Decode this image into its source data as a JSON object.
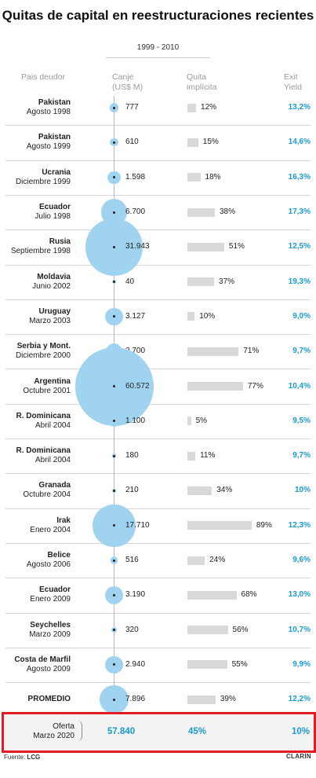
{
  "title": "Quitas de capital en reestructuraciones recientes",
  "subtitle": "1999 - 2010",
  "headers": {
    "country": "Pais deudor",
    "canje": "Canje (US$ M)",
    "quita": "Quita implícita",
    "exit": "Exit Yield"
  },
  "colors": {
    "bubble": "#9fd3f0",
    "bar": "#d9d9d9",
    "accent": "#1a9bd6",
    "highlight": "#e31b23"
  },
  "chart_data": {
    "type": "table",
    "columns": [
      "Pais deudor",
      "Canje (US$ M)",
      "Quita implícita",
      "Exit Yield"
    ],
    "rows": [
      {
        "name": "Pakistan",
        "date": "Agosto 1998",
        "canje": 777,
        "canje_label": "777",
        "quita": 12,
        "quita_label": "12%",
        "exit_label": "13,2%"
      },
      {
        "name": "Pakistan",
        "date": "Agosto 1999",
        "canje": 610,
        "canje_label": "610",
        "quita": 15,
        "quita_label": "15%",
        "exit_label": "14,6%"
      },
      {
        "name": "Ucrania",
        "date": "Diciembre 1999",
        "canje": 1598,
        "canje_label": "1.598",
        "quita": 18,
        "quita_label": "18%",
        "exit_label": "16,3%"
      },
      {
        "name": "Ecuador",
        "date": "Julio 1998",
        "canje": 6700,
        "canje_label": "6.700",
        "quita": 38,
        "quita_label": "38%",
        "exit_label": "17,3%"
      },
      {
        "name": "Rusia",
        "date": "Septiembre 1998",
        "canje": 31943,
        "canje_label": "31.943",
        "quita": 51,
        "quita_label": "51%",
        "exit_label": "12,5%"
      },
      {
        "name": "Moldavia",
        "date": "Junio 2002",
        "canje": 40,
        "canje_label": "40",
        "quita": 37,
        "quita_label": "37%",
        "exit_label": "19,3%"
      },
      {
        "name": "Uruguay",
        "date": "Marzo 2003",
        "canje": 3127,
        "canje_label": "3.127",
        "quita": 10,
        "quita_label": "10%",
        "exit_label": "9,0%"
      },
      {
        "name": "Serbia y Mont.",
        "date": "Diciembre 2000",
        "canje": 2700,
        "canje_label": "2.700",
        "quita": 71,
        "quita_label": "71%",
        "exit_label": "9,7%"
      },
      {
        "name": "Argentina",
        "date": "Octubre 2001",
        "canje": 60572,
        "canje_label": "60.572",
        "quita": 77,
        "quita_label": "77%",
        "exit_label": "10,4%"
      },
      {
        "name": "R. Dominicana",
        "date": "Abril 2004",
        "canje": 1100,
        "canje_label": "1.100",
        "quita": 5,
        "quita_label": "5%",
        "exit_label": "9,5%"
      },
      {
        "name": "R. Dominicana",
        "date": "Abril 2004",
        "canje": 180,
        "canje_label": "180",
        "quita": 11,
        "quita_label": "11%",
        "exit_label": "9,7%"
      },
      {
        "name": "Granada",
        "date": "Octubre 2004",
        "canje": 210,
        "canje_label": "210",
        "quita": 34,
        "quita_label": "34%",
        "exit_label": "10%"
      },
      {
        "name": "Irak",
        "date": "Enero 2004",
        "canje": 17710,
        "canje_label": "17.710",
        "quita": 89,
        "quita_label": "89%",
        "exit_label": "12,3%"
      },
      {
        "name": "Belice",
        "date": "Agosto 2006",
        "canje": 516,
        "canje_label": "516",
        "quita": 24,
        "quita_label": "24%",
        "exit_label": "9,6%"
      },
      {
        "name": "Ecuador",
        "date": "Enero 2009",
        "canje": 3190,
        "canje_label": "3.190",
        "quita": 68,
        "quita_label": "68%",
        "exit_label": "13,0%"
      },
      {
        "name": "Seychelles",
        "date": "Marzo 2009",
        "canje": 320,
        "canje_label": "320",
        "quita": 56,
        "quita_label": "56%",
        "exit_label": "10,7%"
      },
      {
        "name": "Costa de Marfil",
        "date": "Agosto 2009",
        "canje": 2940,
        "canje_label": "2.940",
        "quita": 55,
        "quita_label": "55%",
        "exit_label": "9,9%"
      },
      {
        "name": "PROMEDIO",
        "date": "",
        "canje": 7896,
        "canje_label": "7.896",
        "quita": 39,
        "quita_label": "39%",
        "exit_label": "12,2%"
      }
    ],
    "highlight": {
      "name": "Oferta",
      "date": "Marzo 2020",
      "canje_label": "57.840",
      "quita_label": "45%",
      "exit_label": "10%"
    }
  },
  "footer": {
    "source_prefix": "Fuente:",
    "source": "LCG",
    "brand": "CLARIN"
  }
}
